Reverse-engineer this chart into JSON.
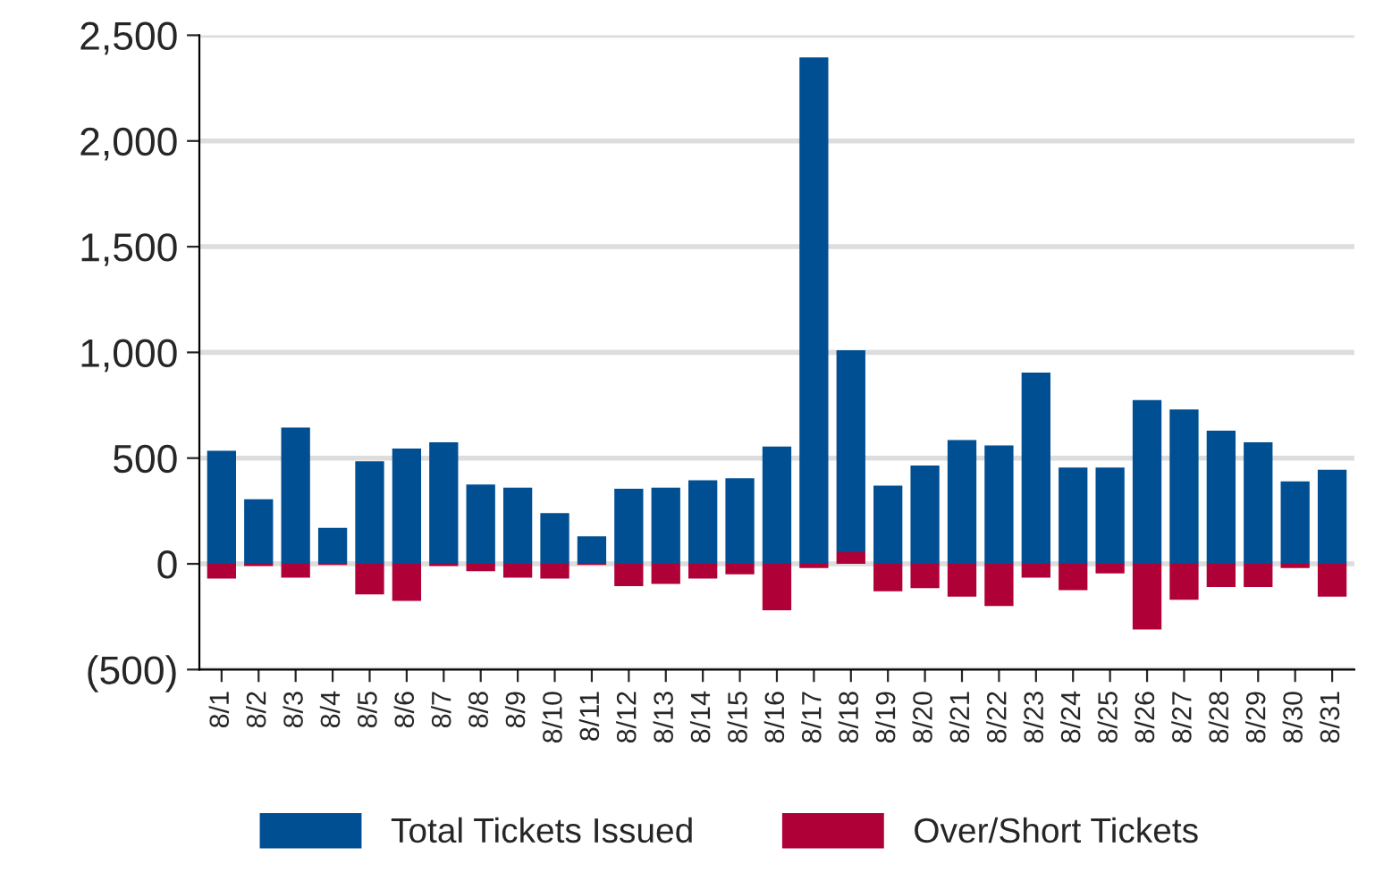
{
  "chart_data": {
    "type": "bar",
    "stacked": true,
    "categories": [
      "8/1",
      "8/2",
      "8/3",
      "8/4",
      "8/5",
      "8/6",
      "8/7",
      "8/8",
      "8/9",
      "8/10",
      "8/11",
      "8/12",
      "8/13",
      "8/14",
      "8/15",
      "8/16",
      "8/17",
      "8/18",
      "8/19",
      "8/20",
      "8/21",
      "8/22",
      "8/23",
      "8/24",
      "8/25",
      "8/26",
      "8/27",
      "8/28",
      "8/29",
      "8/30",
      "8/31"
    ],
    "series": [
      {
        "name": "Over/Short Tickets",
        "color": "#b00038",
        "values": [
          -70,
          -10,
          -65,
          -5,
          -145,
          -175,
          -10,
          -35,
          -65,
          -70,
          -5,
          -105,
          -95,
          -70,
          -50,
          -220,
          -20,
          55,
          -130,
          -115,
          -155,
          -200,
          -65,
          -125,
          -45,
          -310,
          -170,
          -110,
          -110,
          -20,
          -155
        ]
      },
      {
        "name": "Total Tickets Issued",
        "color": "#004f93",
        "values": [
          535,
          305,
          645,
          170,
          485,
          545,
          575,
          375,
          360,
          240,
          130,
          355,
          360,
          395,
          405,
          555,
          2395,
          955,
          370,
          465,
          585,
          560,
          905,
          455,
          455,
          775,
          730,
          630,
          575,
          390,
          445
        ]
      }
    ],
    "ylim": [
      -500,
      2500
    ],
    "yticks": [
      {
        "value": -500,
        "label": "(500)"
      },
      0,
      {
        "value": 500,
        "label": "500"
      },
      {
        "value": 1000,
        "label": "1,000"
      },
      {
        "value": 1500,
        "label": "1,500"
      },
      {
        "value": 2000,
        "label": "2,000"
      },
      {
        "value": 2500,
        "label": "2,500"
      }
    ],
    "grid": "y",
    "legend": "bottom"
  }
}
